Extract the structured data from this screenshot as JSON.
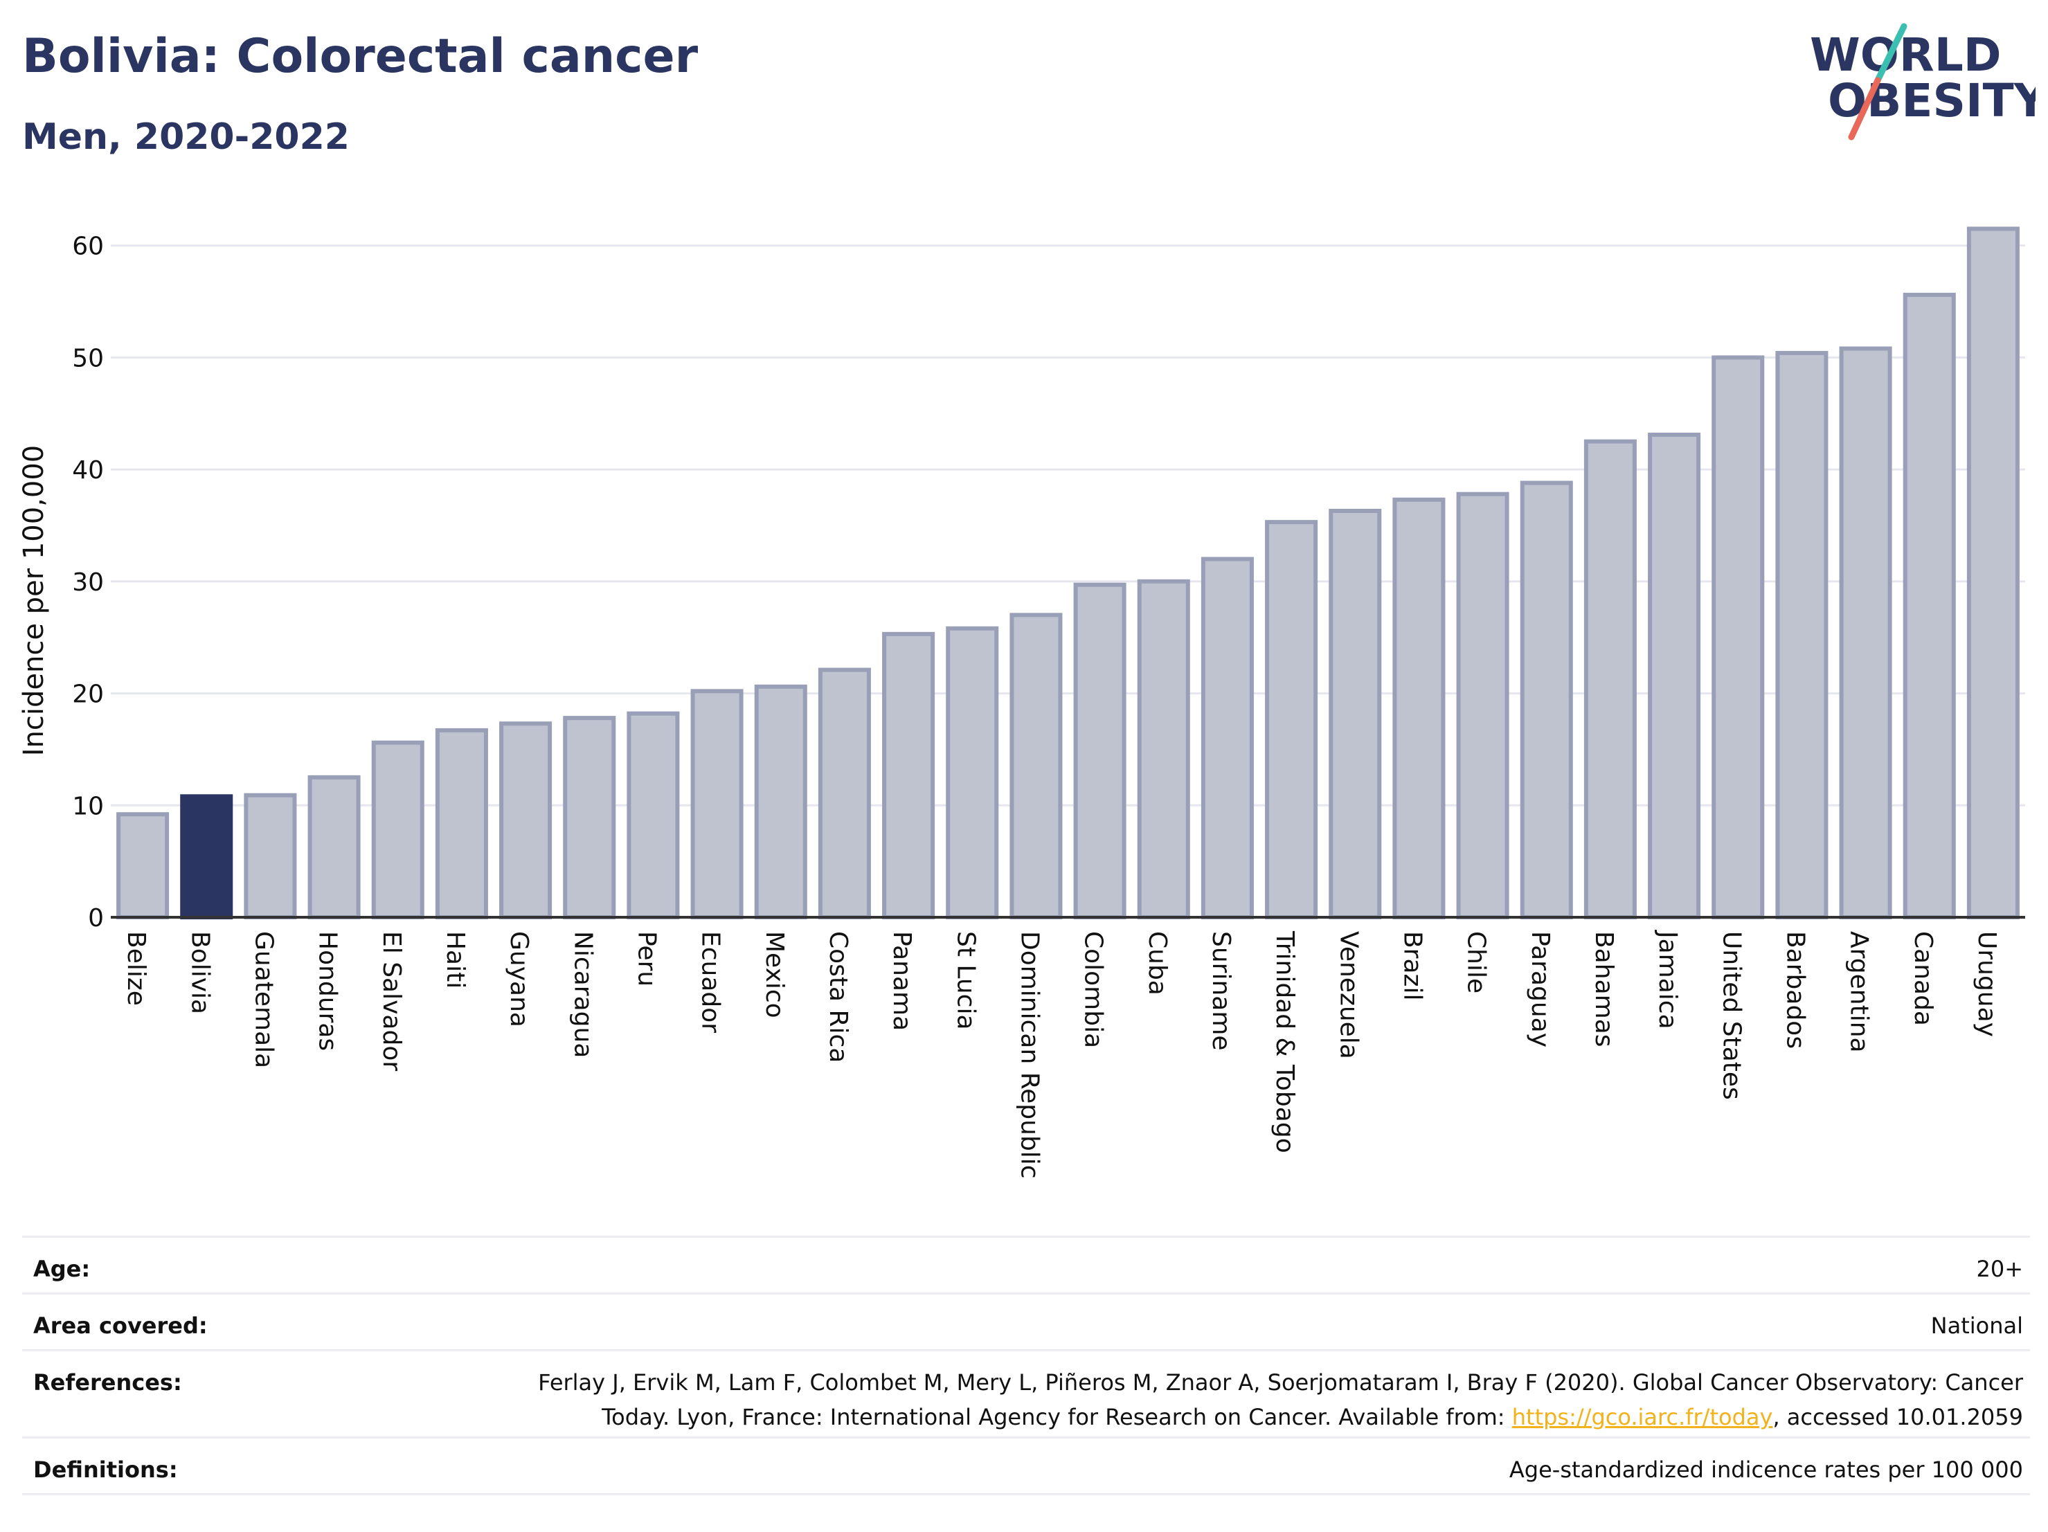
{
  "header": {
    "title": "Bolivia: Colorectal cancer",
    "subtitle": "Men, 2020-2022"
  },
  "logo": {
    "line1": "WORLD",
    "line2": "OBESITY",
    "colors": {
      "text": "#2b3561",
      "slash_teal": "#3bbfb1",
      "slash_coral": "#e8685a"
    }
  },
  "chart_data": {
    "type": "bar",
    "ylabel": "Incidence per 100,000",
    "xlabel": "",
    "ylim": [
      0,
      64
    ],
    "yticks": [
      0,
      10,
      20,
      30,
      40,
      50,
      60
    ],
    "grid": true,
    "highlight": "Bolivia",
    "colors": {
      "bar": "#bfc2cf",
      "bar_edge": "#9a9fb8",
      "highlight": "#2b3561",
      "grid": "#e6e7ee"
    },
    "categories": [
      "Belize",
      "Bolivia",
      "Guatemala",
      "Honduras",
      "El Salvador",
      "Haiti",
      "Guyana",
      "Nicaragua",
      "Peru",
      "Ecuador",
      "Mexico",
      "Costa Rica",
      "Panama",
      "St Lucia",
      "Dominican Republic",
      "Colombia",
      "Cuba",
      "Suriname",
      "Trinidad & Tobago",
      "Venezuela",
      "Brazil",
      "Chile",
      "Paraguay",
      "Bahamas",
      "Jamaica",
      "United States",
      "Barbados",
      "Argentina",
      "Canada",
      "Uruguay"
    ],
    "values": [
      9.2,
      10.8,
      10.9,
      12.5,
      15.6,
      16.7,
      17.3,
      17.8,
      18.2,
      20.2,
      20.6,
      22.1,
      25.3,
      25.8,
      27.0,
      29.7,
      30.0,
      32.0,
      35.3,
      36.3,
      37.3,
      37.8,
      38.8,
      42.5,
      43.1,
      50.0,
      50.4,
      50.8,
      55.6,
      61.5
    ]
  },
  "info": {
    "age_label": "Age:",
    "age_value": "20+",
    "area_label": "Area covered:",
    "area_value": "National",
    "references_label": "References:",
    "references_text_1": "Ferlay J, Ervik M, Lam F, Colombet M, Mery L, Piñeros M, Znaor A, Soerjomataram I, Bray F (2020). Global Cancer Observatory: Cancer Today. Lyon, France: International Agency for Research on Cancer. Available from: ",
    "references_link": "https://gco.iarc.fr/today",
    "references_text_2": ", accessed 10.01.2059",
    "definitions_label": "Definitions:",
    "definitions_value": "Age-standardized indicence rates per 100 000"
  }
}
